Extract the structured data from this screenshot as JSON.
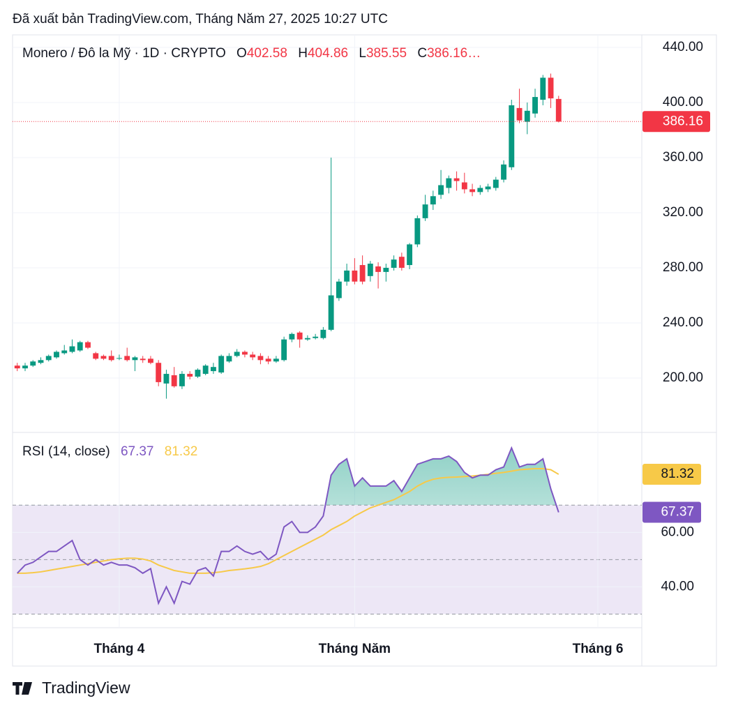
{
  "header": {
    "published": "Đã xuất bản TradingView.com, Tháng Năm 27, 2025 10:27 UTC"
  },
  "chart_data": [
    {
      "type": "candlestick",
      "title": "Monero / Đô la Mỹ · 1D · CRYPTO",
      "ohlc_keys": [
        "O",
        "H",
        "L",
        "C"
      ],
      "close_label": "386.16…",
      "open": [
        209,
        207,
        209,
        211,
        213,
        215,
        218,
        219,
        220,
        226,
        218,
        216,
        216,
        214,
        216,
        213,
        214,
        214,
        211,
        196,
        202,
        194,
        203,
        201,
        203,
        205,
        204,
        212,
        216,
        219,
        217,
        216,
        214,
        212,
        213,
        228,
        233,
        228,
        229,
        229,
        235,
        258,
        270,
        278,
        282,
        274,
        281,
        277,
        280,
        288,
        282,
        297,
        316,
        326,
        333,
        338,
        345,
        342,
        337,
        335,
        337,
        338,
        344,
        353,
        396,
        386,
        392,
        402,
        418,
        402.58
      ],
      "high": [
        211,
        211,
        213,
        215,
        217,
        220,
        224,
        228,
        227,
        227,
        219,
        217,
        220,
        217,
        222,
        216,
        216,
        216,
        213,
        206,
        208,
        205,
        205,
        207,
        210,
        211,
        217,
        218,
        221,
        220,
        219,
        218,
        216,
        216,
        230,
        233,
        234,
        231,
        232,
        237,
        360,
        272,
        283,
        287,
        289,
        285,
        284,
        283,
        289,
        291,
        298,
        318,
        333,
        336,
        351,
        347,
        350,
        349,
        341,
        340,
        341,
        346,
        358,
        402,
        410,
        400,
        410,
        420,
        421,
        404.86
      ],
      "low": [
        205,
        205,
        208,
        210,
        212,
        214,
        217,
        218,
        219,
        221,
        213,
        213,
        212,
        213,
        212,
        205,
        211,
        210,
        194,
        185,
        193,
        192,
        199,
        200,
        202,
        203,
        203,
        211,
        215,
        215,
        213,
        210,
        210,
        211,
        212,
        226,
        222,
        227,
        228,
        228,
        234,
        256,
        267,
        268,
        268,
        270,
        265,
        270,
        278,
        278,
        279,
        295,
        314,
        322,
        330,
        334,
        336,
        334,
        332,
        333,
        335,
        336,
        342,
        351,
        385,
        377,
        389,
        398,
        396,
        385.55
      ],
      "close": [
        207,
        209,
        212,
        213,
        216,
        219,
        220,
        223,
        226,
        222,
        214,
        214,
        213,
        214.5,
        213,
        215,
        213,
        211,
        197,
        203,
        194,
        203,
        201,
        206,
        209,
        208,
        216,
        216,
        219,
        217,
        215,
        213,
        212,
        214,
        228,
        232,
        228,
        229,
        230,
        235,
        260,
        270,
        278,
        270,
        270,
        283,
        277,
        280,
        286,
        280,
        297,
        316,
        326,
        332,
        340,
        345,
        343,
        337,
        335,
        338,
        339,
        344,
        355,
        398,
        387,
        394,
        404,
        418,
        403,
        386.16
      ],
      "up_color": "#089981",
      "down_color": "#f23645",
      "xlim": [
        -0.6,
        79.6
      ],
      "ylim": [
        160.5,
        449.1
      ],
      "yticks": [
        {
          "value": 200,
          "label": "200.00"
        },
        {
          "value": 240,
          "label": "240.00"
        },
        {
          "value": 280,
          "label": "280.00"
        },
        {
          "value": 320,
          "label": "320.00"
        },
        {
          "value": 360,
          "label": "360.00"
        },
        {
          "value": 400,
          "label": "400.00"
        },
        {
          "value": 440,
          "label": "440.00"
        }
      ],
      "grid": true,
      "last_price_line": true
    },
    {
      "type": "line",
      "title": "RSI (14, close)",
      "series": [
        {
          "color": "#7e57c2",
          "values": [
            45,
            48,
            49,
            51,
            53,
            53,
            55,
            57,
            50,
            48,
            50,
            48,
            49,
            48,
            48,
            47,
            45,
            46.7,
            34,
            40,
            34,
            42,
            41,
            46,
            47,
            44,
            53,
            53,
            55,
            53,
            52,
            53,
            50,
            52,
            62,
            64,
            60,
            60,
            62,
            66,
            81,
            85,
            87,
            77,
            80,
            77,
            77,
            77,
            79,
            75,
            80,
            85,
            86,
            87,
            87,
            88,
            86,
            82,
            80,
            81,
            81,
            83,
            84,
            91,
            84,
            85,
            85,
            87,
            76,
            67.37
          ]
        },
        {
          "color": "#f7c948",
          "values": [
            45,
            45,
            45.2,
            45.5,
            46,
            46.5,
            47,
            47.5,
            48,
            48.5,
            49,
            49.5,
            50,
            50.3,
            50.5,
            50.5,
            50.2,
            49.5,
            48,
            47,
            46,
            45.5,
            45,
            45,
            45,
            45.2,
            45.5,
            46,
            46.3,
            46.6,
            47,
            47.5,
            48.5,
            50,
            51.5,
            53,
            54.5,
            56,
            57.5,
            59,
            61,
            62.5,
            64,
            66,
            67.5,
            69,
            70,
            71,
            72,
            73.5,
            75,
            77,
            78.5,
            79.5,
            80,
            80.2,
            80.3,
            80.5,
            80.7,
            81,
            81.3,
            81.7,
            82,
            82.5,
            83,
            83.2,
            83.4,
            83.4,
            83,
            81.32
          ]
        }
      ],
      "xlim": [
        -0.6,
        79.6
      ],
      "xticks": [
        {
          "value": 13,
          "label": "Tháng 4"
        },
        {
          "value": 43,
          "label": "Tháng Năm"
        },
        {
          "value": 74,
          "label": "Tháng 6"
        }
      ],
      "ylim": [
        25,
        96.7
      ],
      "yticks": [
        {
          "value": 40,
          "label": "40.00"
        },
        {
          "value": 60,
          "label": "60.00"
        }
      ],
      "hlines": [
        70,
        50,
        30
      ],
      "band_color": "#ede7f6",
      "overbought_fill": "#089981"
    }
  ],
  "footer": {
    "brand": "TradingView"
  }
}
